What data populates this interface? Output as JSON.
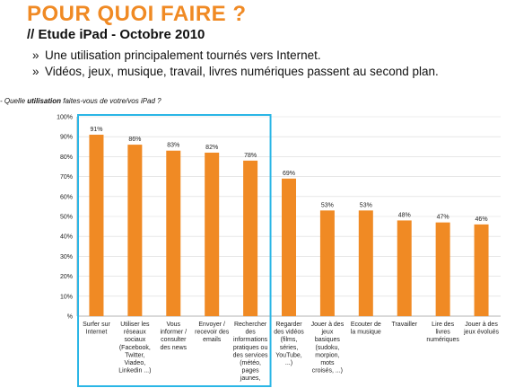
{
  "header": {
    "title": "POUR QUOI FAIRE ?",
    "subtitle": "// Etude iPad - Octobre 2010",
    "bullets": [
      "Une utilisation principalement tournés vers Internet.",
      "Vidéos, jeux, musique, travail, livres numériques passent au second plan."
    ],
    "bullet_mark": "»"
  },
  "question": {
    "prefix": "- Quelle ",
    "emphasis": "utilisation",
    "suffix": " faites-vous de votre/vos iPad ?"
  },
  "colors": {
    "accent": "#f08a24",
    "bar": "#f08a24",
    "highlight_box": "#2bb6e6",
    "grid": "#d9d9d9"
  },
  "chart_data": {
    "type": "bar",
    "ylim": [
      0,
      100
    ],
    "y_ticks": [
      "%",
      "10%",
      "20%",
      "30%",
      "40%",
      "50%",
      "60%",
      "70%",
      "80%",
      "90%",
      "100%"
    ],
    "grid": true,
    "highlighted_categories": [
      0,
      1,
      2,
      3,
      4
    ],
    "categories": [
      [
        "Surfer sur",
        "Internet"
      ],
      [
        "Utiliser les",
        "réseaux",
        "sociaux",
        "(Facebook,",
        "Twitter,",
        "Viadeo,",
        "Linkedin ...)"
      ],
      [
        "Vous",
        "informer /",
        "consulter",
        "des news"
      ],
      [
        "Envoyer /",
        "recevoir des",
        "emails"
      ],
      [
        "Rechercher",
        "des",
        "informations",
        "pratiques ou",
        "des services",
        "(météo,",
        "pages",
        "jaunes,"
      ],
      [
        "Regarder",
        "des vidéos",
        "(films,",
        "séries,",
        "YouTube,",
        "...)"
      ],
      [
        "Jouer à des",
        "jeux",
        "basiques",
        "(sudoku,",
        "morpion,",
        "mots",
        "croisés, ...)"
      ],
      [
        "Ecouter de",
        "la musique"
      ],
      [
        "Travailler"
      ],
      [
        "Lire des",
        "livres",
        "numériques"
      ],
      [
        "Jouer à des",
        "jeux évolués"
      ]
    ],
    "values": [
      91,
      86,
      83,
      82,
      78,
      69,
      53,
      53,
      48,
      47,
      46
    ],
    "value_labels": [
      "91%",
      "86%",
      "83%",
      "82%",
      "78%",
      "69%",
      "53%",
      "53%",
      "48%",
      "47%",
      "46%"
    ]
  }
}
